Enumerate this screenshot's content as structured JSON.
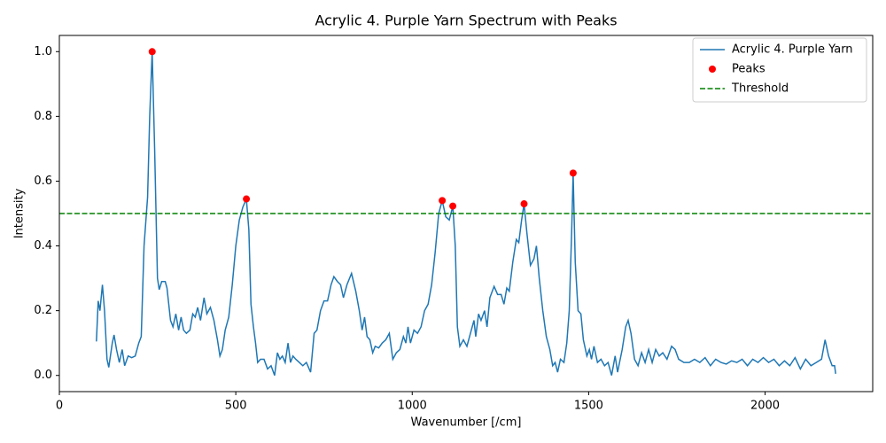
{
  "chart_data": {
    "type": "line",
    "title": "Acrylic 4. Purple Yarn Spectrum with Peaks",
    "x_label": "Wavenumber [/cm]",
    "y_label": "Intensity",
    "xlim": [
      0,
      2305
    ],
    "ylim": [
      -0.05,
      1.05
    ],
    "xticks": [
      0,
      500,
      1000,
      1500,
      2000
    ],
    "yticks": [
      {
        "value": 0,
        "label": "0.0"
      },
      0.2,
      0.4,
      0.6,
      0.8,
      {
        "value": 1,
        "label": "1.0"
      }
    ],
    "legend": "upper right",
    "series": [
      {
        "name": "Acrylic 4. Purple Yarn",
        "color": "#1f77b4",
        "style": "line",
        "x": [
          105,
          110,
          115,
          122,
          128,
          135,
          140,
          150,
          155,
          162,
          170,
          178,
          185,
          195,
          205,
          215,
          225,
          232,
          240,
          250,
          256,
          263,
          270,
          278,
          283,
          290,
          300,
          305,
          315,
          322,
          330,
          338,
          345,
          352,
          360,
          370,
          378,
          385,
          392,
          400,
          410,
          418,
          428,
          438,
          448,
          455,
          462,
          470,
          480,
          490,
          500,
          510,
          520,
          530,
          537,
          543,
          550,
          556,
          562,
          570,
          580,
          590,
          600,
          610,
          618,
          625,
          632,
          640,
          648,
          655,
          662,
          670,
          680,
          690,
          700,
          712,
          722,
          730,
          740,
          750,
          760,
          770,
          778,
          788,
          797,
          805,
          815,
          828,
          840,
          850,
          858,
          865,
          872,
          880,
          888,
          895,
          905,
          915,
          925,
          935,
          945,
          955,
          965,
          975,
          982,
          988,
          995,
          1005,
          1015,
          1025,
          1035,
          1045,
          1055,
          1065,
          1075,
          1085,
          1095,
          1105,
          1115,
          1122,
          1128,
          1135,
          1145,
          1155,
          1165,
          1175,
          1180,
          1188,
          1195,
          1205,
          1212,
          1220,
          1232,
          1242,
          1252,
          1260,
          1268,
          1275,
          1285,
          1295,
          1302,
          1310,
          1317,
          1325,
          1335,
          1345,
          1352,
          1360,
          1370,
          1380,
          1390,
          1398,
          1405,
          1412,
          1420,
          1430,
          1438,
          1445,
          1452,
          1456,
          1462,
          1470,
          1478,
          1485,
          1495,
          1502,
          1508,
          1515,
          1525,
          1535,
          1545,
          1555,
          1565,
          1575,
          1582,
          1595,
          1605,
          1612,
          1620,
          1630,
          1640,
          1650,
          1660,
          1670,
          1680,
          1690,
          1700,
          1710,
          1722,
          1735,
          1745,
          1755,
          1770,
          1785,
          1800,
          1815,
          1830,
          1845,
          1860,
          1875,
          1890,
          1905,
          1920,
          1935,
          1950,
          1965,
          1980,
          1995,
          2010,
          2025,
          2040,
          2055,
          2070,
          2085,
          2100,
          2115,
          2130,
          2145,
          2160,
          2170,
          2180,
          2190,
          2197,
          2200
        ],
        "values": [
          0.105,
          0.23,
          0.2,
          0.28,
          0.2,
          0.05,
          0.025,
          0.1,
          0.125,
          0.08,
          0.04,
          0.08,
          0.03,
          0.06,
          0.055,
          0.06,
          0.1,
          0.12,
          0.4,
          0.55,
          0.8,
          1.0,
          0.7,
          0.3,
          0.265,
          0.29,
          0.29,
          0.27,
          0.17,
          0.15,
          0.19,
          0.14,
          0.18,
          0.14,
          0.13,
          0.14,
          0.19,
          0.18,
          0.21,
          0.17,
          0.24,
          0.19,
          0.21,
          0.17,
          0.11,
          0.06,
          0.08,
          0.14,
          0.18,
          0.28,
          0.4,
          0.48,
          0.52,
          0.545,
          0.45,
          0.22,
          0.15,
          0.1,
          0.04,
          0.05,
          0.05,
          0.02,
          0.03,
          0.0,
          0.07,
          0.05,
          0.06,
          0.04,
          0.1,
          0.04,
          0.06,
          0.05,
          0.04,
          0.03,
          0.04,
          0.01,
          0.13,
          0.14,
          0.2,
          0.23,
          0.23,
          0.28,
          0.305,
          0.29,
          0.28,
          0.24,
          0.28,
          0.315,
          0.26,
          0.2,
          0.14,
          0.18,
          0.12,
          0.11,
          0.07,
          0.09,
          0.085,
          0.1,
          0.11,
          0.13,
          0.05,
          0.07,
          0.08,
          0.12,
          0.1,
          0.15,
          0.1,
          0.14,
          0.13,
          0.15,
          0.2,
          0.22,
          0.28,
          0.38,
          0.5,
          0.54,
          0.49,
          0.48,
          0.523,
          0.4,
          0.15,
          0.09,
          0.11,
          0.09,
          0.13,
          0.17,
          0.12,
          0.19,
          0.17,
          0.2,
          0.15,
          0.24,
          0.275,
          0.25,
          0.25,
          0.22,
          0.27,
          0.26,
          0.35,
          0.42,
          0.41,
          0.48,
          0.53,
          0.44,
          0.34,
          0.36,
          0.4,
          0.3,
          0.2,
          0.12,
          0.08,
          0.03,
          0.04,
          0.01,
          0.05,
          0.04,
          0.1,
          0.2,
          0.45,
          0.625,
          0.35,
          0.2,
          0.19,
          0.11,
          0.06,
          0.08,
          0.05,
          0.09,
          0.04,
          0.05,
          0.03,
          0.04,
          0.0,
          0.06,
          0.01,
          0.08,
          0.15,
          0.17,
          0.13,
          0.05,
          0.03,
          0.07,
          0.04,
          0.08,
          0.04,
          0.08,
          0.06,
          0.07,
          0.05,
          0.09,
          0.08,
          0.05,
          0.04,
          0.04,
          0.05,
          0.04,
          0.055,
          0.03,
          0.05,
          0.04,
          0.035,
          0.045,
          0.04,
          0.05,
          0.03,
          0.05,
          0.04,
          0.055,
          0.04,
          0.05,
          0.03,
          0.045,
          0.03,
          0.055,
          0.02,
          0.05,
          0.03,
          0.04,
          0.05,
          0.11,
          0.06,
          0.03,
          0.03,
          0.005
        ]
      },
      {
        "name": "Peaks",
        "color": "red",
        "style": "scatter",
        "x": [
          263,
          530,
          1085,
          1115,
          1317,
          1456
        ],
        "values": [
          1.0,
          0.545,
          0.54,
          0.523,
          0.53,
          0.625
        ]
      }
    ],
    "threshold": {
      "name": "Threshold",
      "value": 0.5,
      "color": "green"
    }
  }
}
